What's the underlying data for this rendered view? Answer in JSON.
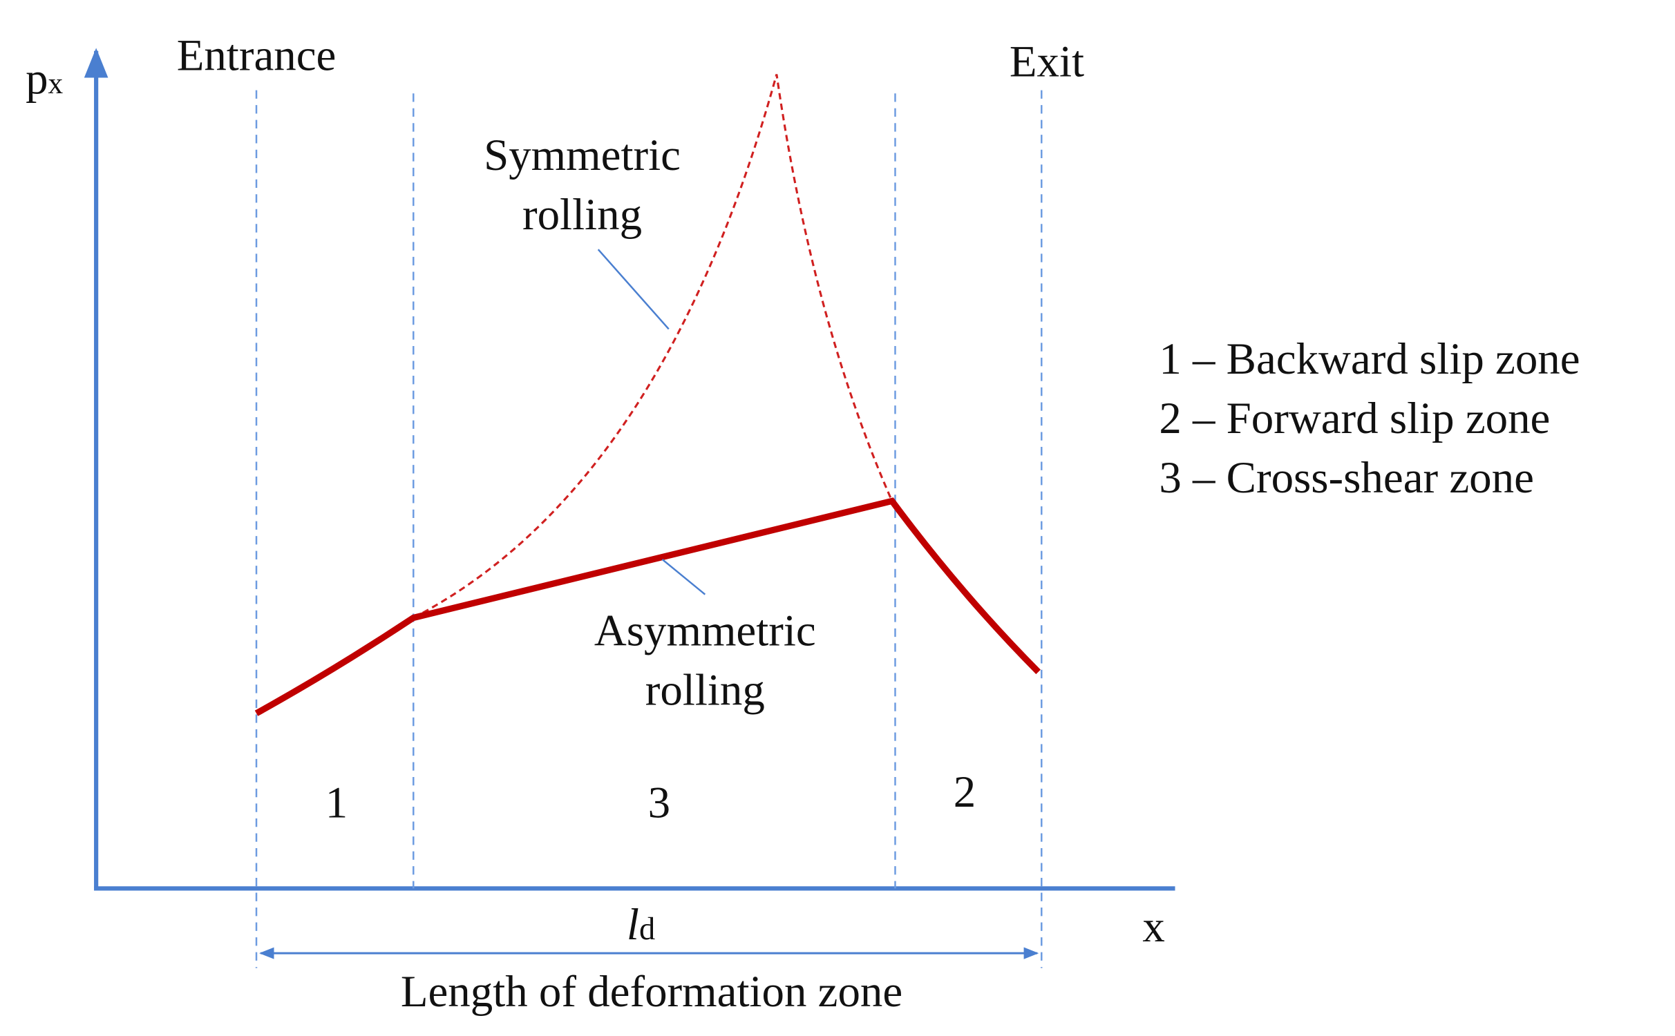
{
  "axes": {
    "y_label": "p",
    "y_label_sub": "x",
    "x_label": "x"
  },
  "ends": {
    "entrance": "Entrance",
    "exit": "Exit"
  },
  "curves": {
    "symmetric": {
      "lines": [
        "Symmetric",
        "rolling"
      ]
    },
    "asymmetric": {
      "lines": [
        "Asymmetric",
        "rolling"
      ]
    }
  },
  "zones": [
    "1",
    "3",
    "2"
  ],
  "legend": [
    "1 – Backward slip zone",
    "2 – Forward slip zone",
    "3 – Cross-shear zone"
  ],
  "dimension": {
    "symbol": "l",
    "symbol_sub": "d",
    "caption": "Length of deformation zone"
  }
}
